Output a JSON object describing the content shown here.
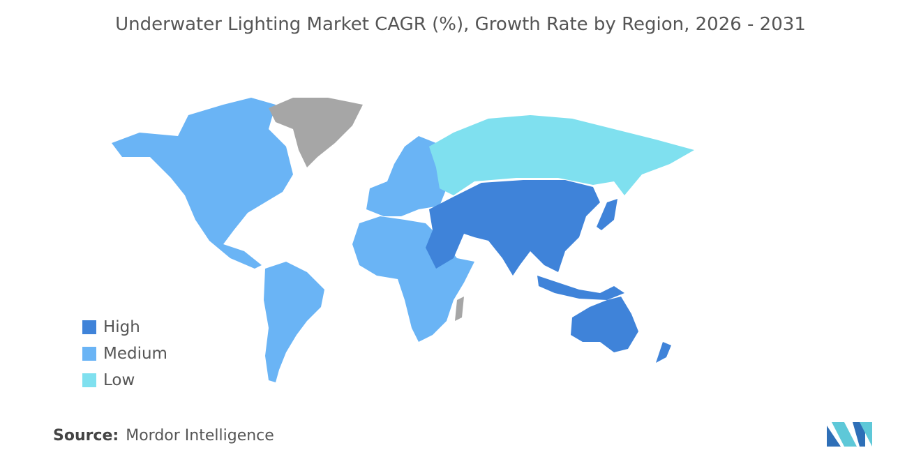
{
  "title": "Underwater Lighting Market CAGR (%), Growth Rate by Region, 2026 - 2031",
  "legend": [
    {
      "label": "High",
      "color": "#3f83d9"
    },
    {
      "label": "Medium",
      "color": "#6ab4f5"
    },
    {
      "label": "Low",
      "color": "#7fe0ef"
    }
  ],
  "source": {
    "label": "Source:",
    "text": "Mordor Intelligence"
  }
}
